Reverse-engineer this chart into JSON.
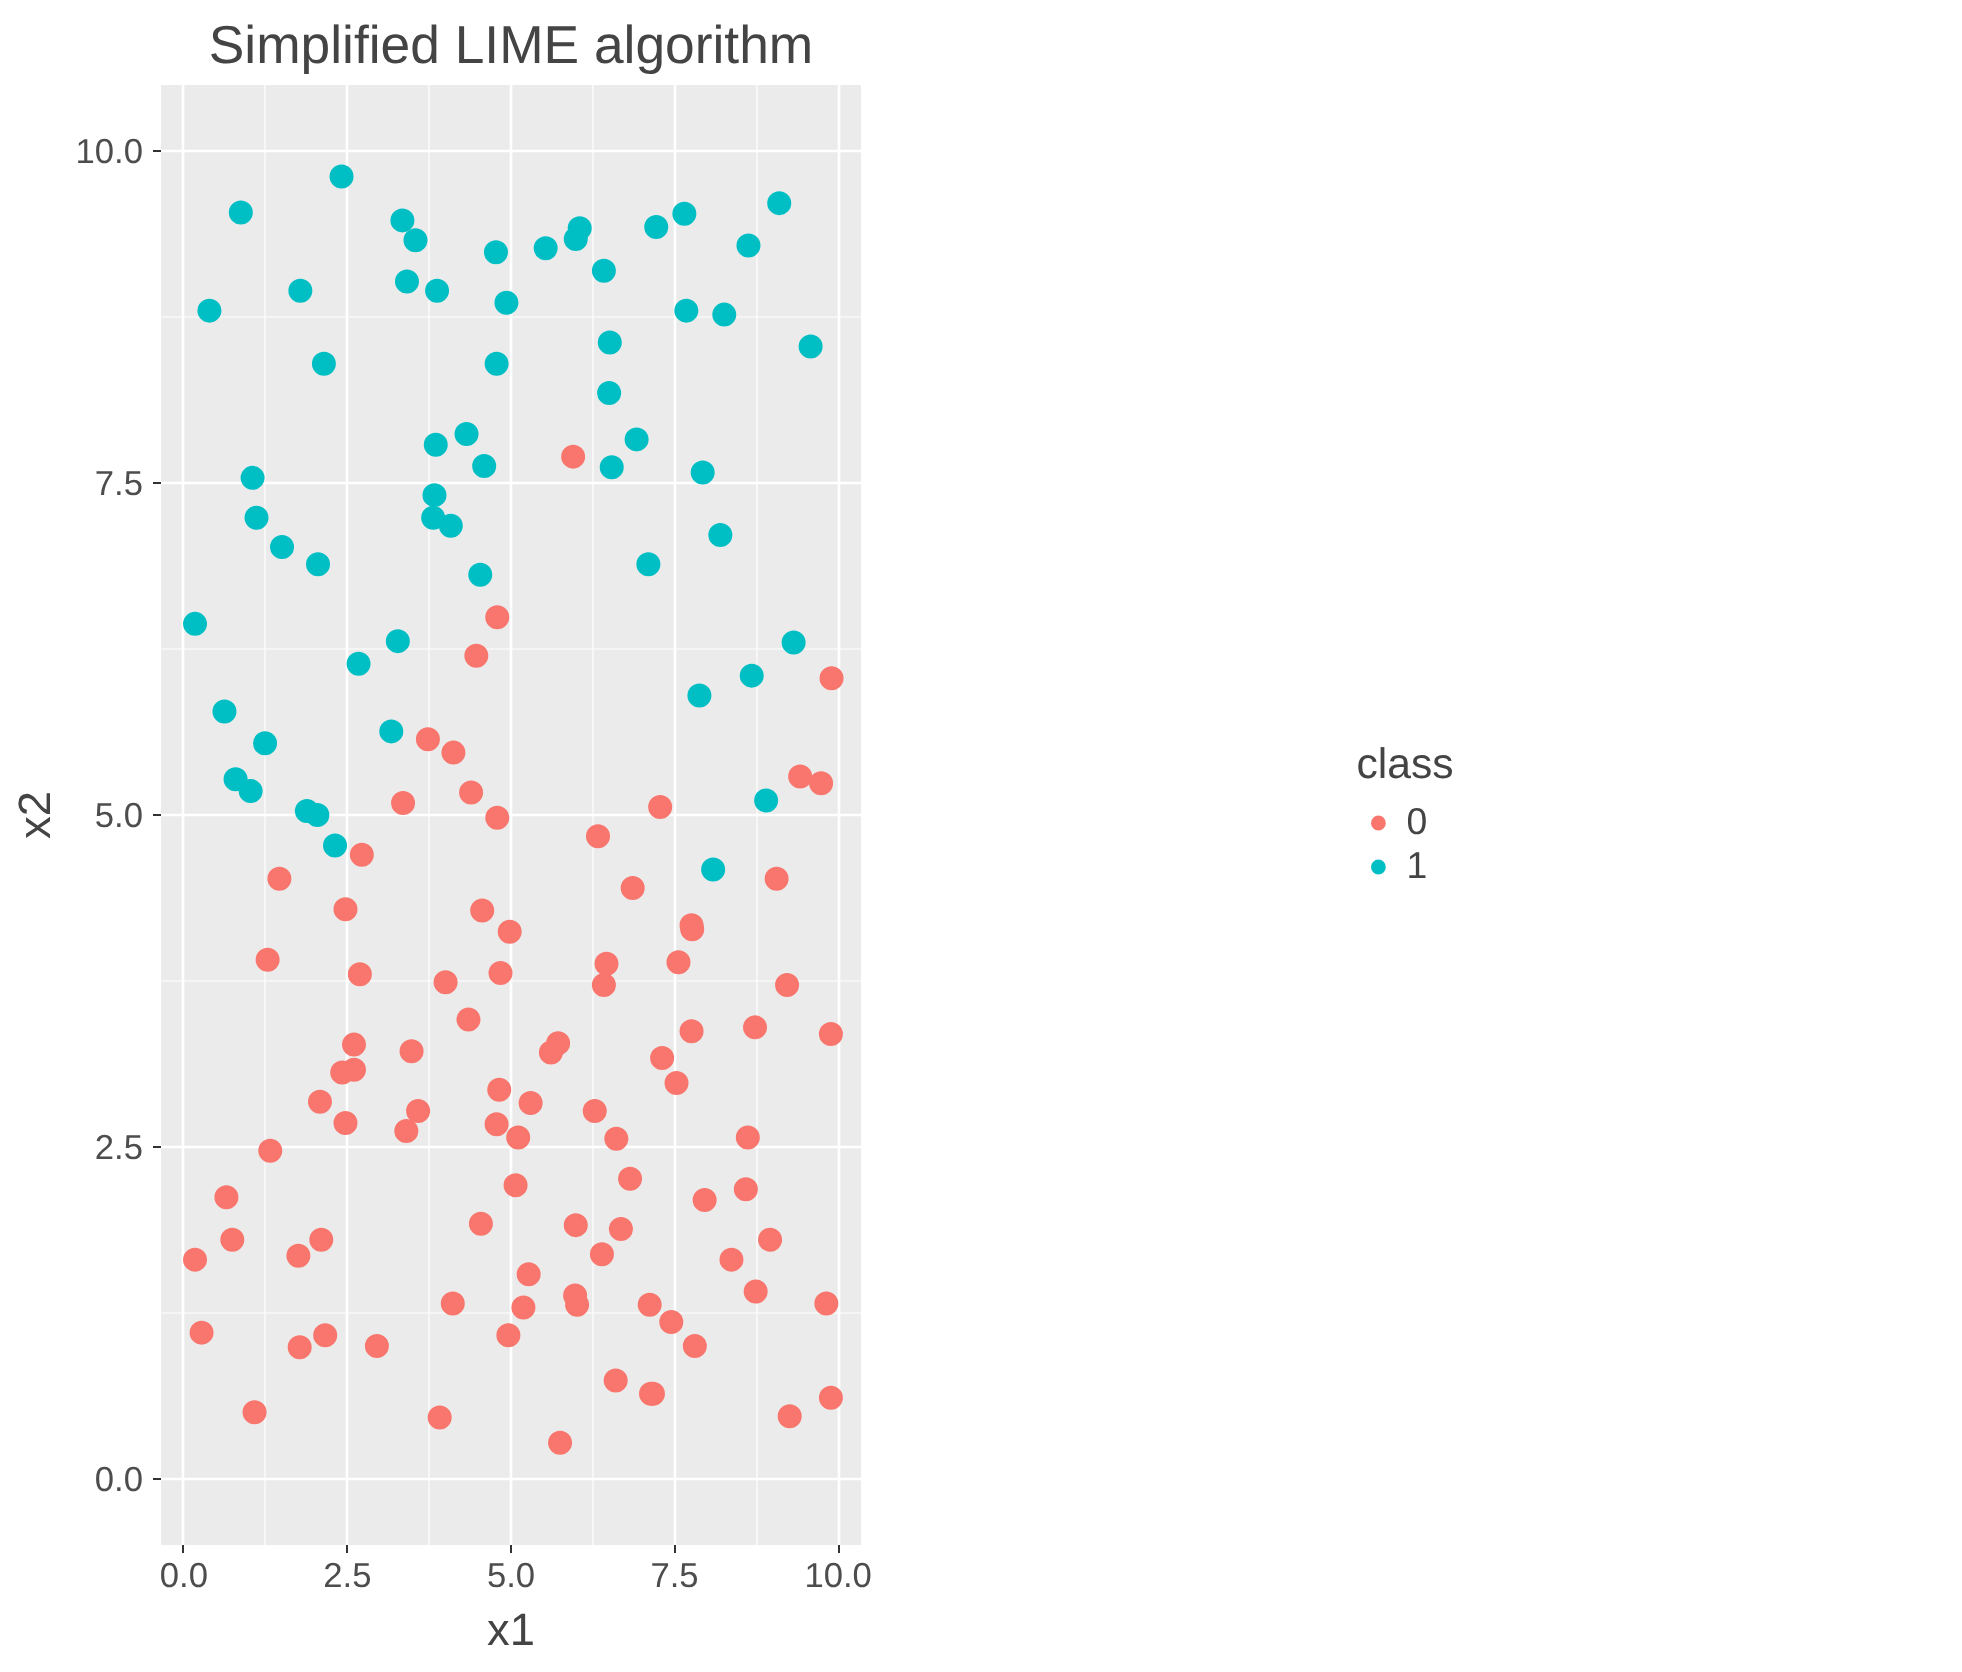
{
  "chart_data": {
    "type": "scatter",
    "title": "Simplified LIME algorithm",
    "xlabel": "x1",
    "ylabel": "x2",
    "legend_title": "class",
    "legend": "right",
    "grid": true,
    "marker": "circle",
    "xlim": [
      -0.35,
      10.35
    ],
    "ylim": [
      -0.5,
      10.5
    ],
    "xticks": [
      {
        "value": 0,
        "label": "0.0"
      },
      2.5,
      {
        "value": 5,
        "label": "5.0"
      },
      7.5,
      {
        "value": 10,
        "label": "10.0"
      }
    ],
    "yticks": [
      {
        "value": 0,
        "label": "0.0"
      },
      2.5,
      {
        "value": 5,
        "label": "5.0"
      },
      7.5,
      {
        "value": 10,
        "label": "10.0"
      }
    ],
    "series": [
      {
        "name": "0",
        "color": "#f8766d",
        "x": [
          5.95,
          4.79,
          4.47,
          3.73,
          4.12,
          3.35,
          4.39,
          4.79,
          9.9,
          9.42,
          9.74,
          7.28,
          2.72,
          1.46,
          2.47,
          1.28,
          2.69,
          2.6,
          2.42,
          2.6,
          2.08,
          2.47,
          1.32,
          0.65,
          0.74,
          0.17,
          0.27,
          1.75,
          2.1,
          1.77,
          2.16,
          2.95,
          1.08,
          6.33,
          6.86,
          4.56,
          4.98,
          4.84,
          4.0,
          6.46,
          6.42,
          4.35,
          3.48,
          5.61,
          5.72,
          4.82,
          3.58,
          3.4,
          4.78,
          5.3,
          6.28,
          5.11,
          6.61,
          6.82,
          5.07,
          4.54,
          5.99,
          6.68,
          5.27,
          6.39,
          4.11,
          5.19,
          5.98,
          6.01,
          4.96,
          6.6,
          3.91,
          5.75,
          9.06,
          7.76,
          7.77,
          7.56,
          9.22,
          8.73,
          9.89,
          7.76,
          7.31,
          7.53,
          8.62,
          8.59,
          7.96,
          8.96,
          8.37,
          8.74,
          7.12,
          9.82,
          7.45,
          7.81,
          7.14,
          7.17,
          9.89,
          9.26
        ],
        "values": [
          7.7,
          6.49,
          6.2,
          5.57,
          5.47,
          5.09,
          5.17,
          4.98,
          6.03,
          5.29,
          5.24,
          5.06,
          4.7,
          4.52,
          4.29,
          3.91,
          3.8,
          3.27,
          3.06,
          3.08,
          2.84,
          2.68,
          2.47,
          2.12,
          1.8,
          1.65,
          1.1,
          1.68,
          1.8,
          0.99,
          1.08,
          1.0,
          0.5,
          4.84,
          4.45,
          4.28,
          4.12,
          3.81,
          3.74,
          3.88,
          3.72,
          3.46,
          3.22,
          3.21,
          3.28,
          2.93,
          2.77,
          2.62,
          2.67,
          2.83,
          2.77,
          2.57,
          2.56,
          2.26,
          2.21,
          1.92,
          1.91,
          1.88,
          1.54,
          1.69,
          1.32,
          1.29,
          1.38,
          1.31,
          1.08,
          0.74,
          0.46,
          0.27,
          4.52,
          4.17,
          4.14,
          3.89,
          3.72,
          3.4,
          3.35,
          3.37,
          3.17,
          2.98,
          2.57,
          2.18,
          2.1,
          1.8,
          1.65,
          1.41,
          1.31,
          1.32,
          1.18,
          1.0,
          0.64,
          0.64,
          0.61,
          0.47
        ]
      },
      {
        "name": "1",
        "color": "#00bfc4",
        "x": [
          0.17,
          0.87,
          2.41,
          0.39,
          1.78,
          2.14,
          1.05,
          1.11,
          1.5,
          2.05,
          2.67,
          3.27,
          0.62,
          3.17,
          1.24,
          0.79,
          1.02,
          1.88,
          2.04,
          2.31,
          3.34,
          3.54,
          3.41,
          3.87,
          4.77,
          4.93,
          4.78,
          5.53,
          5.99,
          6.05,
          6.42,
          6.51,
          6.5,
          6.54,
          3.85,
          4.32,
          4.59,
          3.83,
          3.81,
          4.08,
          4.53,
          7.22,
          7.65,
          7.68,
          8.26,
          8.63,
          9.1,
          9.58,
          6.92,
          7.93,
          8.2,
          7.1,
          9.32,
          8.68,
          7.88,
          8.9,
          8.09
        ],
        "values": [
          6.44,
          9.54,
          9.81,
          8.8,
          8.95,
          8.4,
          7.54,
          7.24,
          7.02,
          6.89,
          6.14,
          6.31,
          5.78,
          5.63,
          5.54,
          5.27,
          5.18,
          5.03,
          5.0,
          4.77,
          9.48,
          9.33,
          9.02,
          8.95,
          9.24,
          8.86,
          8.4,
          9.27,
          9.34,
          9.42,
          9.1,
          8.56,
          8.18,
          7.62,
          7.79,
          7.87,
          7.63,
          7.41,
          7.24,
          7.18,
          6.81,
          9.43,
          9.53,
          8.8,
          8.77,
          9.29,
          9.61,
          8.53,
          7.83,
          7.58,
          7.11,
          6.89,
          6.3,
          6.05,
          5.9,
          5.11,
          4.59
        ]
      }
    ]
  }
}
